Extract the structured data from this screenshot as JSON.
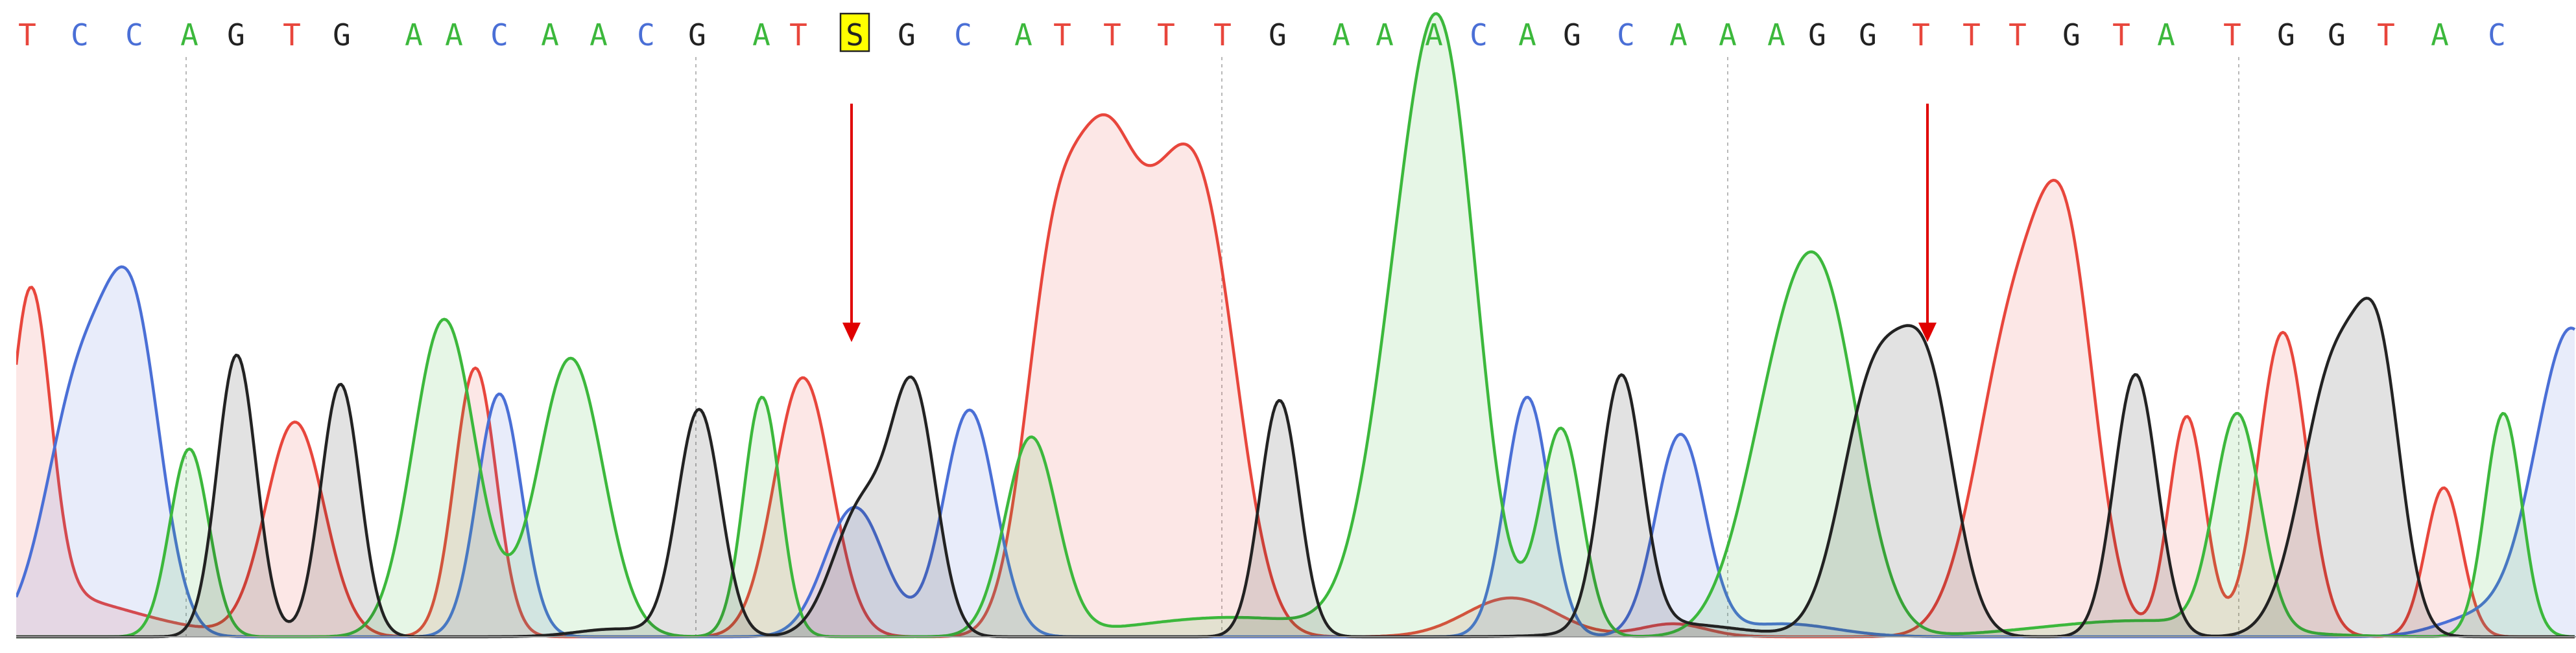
{
  "sequence": {
    "bases": [
      "T",
      "C",
      "C",
      "A",
      "G",
      "T",
      "G",
      "A",
      "A",
      "C",
      "A",
      "A",
      "C",
      "G",
      "A",
      "T",
      "S",
      "G",
      "C",
      "A",
      "T",
      "T",
      "T",
      "T",
      "G",
      "A",
      "A",
      "A",
      "C",
      "A",
      "G",
      "C",
      "A",
      "A",
      "A",
      "G",
      "G",
      "T",
      "T",
      "T",
      "G",
      "T",
      "A",
      "T",
      "G",
      "G",
      "T",
      "A",
      "C"
    ],
    "highlighted_index": 16,
    "highlight_color": "#ffff00"
  },
  "colors": {
    "A": "#3cb83c",
    "C": "#4a6fd6",
    "G": "#222222",
    "T": "#e8463c",
    "S": "#222222",
    "marker": "#e00000",
    "gridline": "#b8b8b8"
  },
  "markers": [
    {
      "name": "variant-marker-1",
      "icon": "red-down-arrow"
    },
    {
      "name": "variant-marker-2",
      "icon": "red-down-arrow"
    }
  ],
  "chart_data": {
    "type": "line",
    "xlabel": "",
    "ylabel": "",
    "grid": false,
    "series": [
      {
        "channel": "T",
        "color": "#e8463c"
      },
      {
        "channel": "C",
        "color": "#4a6fd6"
      },
      {
        "channel": "A",
        "color": "#3cb83c"
      },
      {
        "channel": "G",
        "color": "#222222"
      }
    ]
  }
}
